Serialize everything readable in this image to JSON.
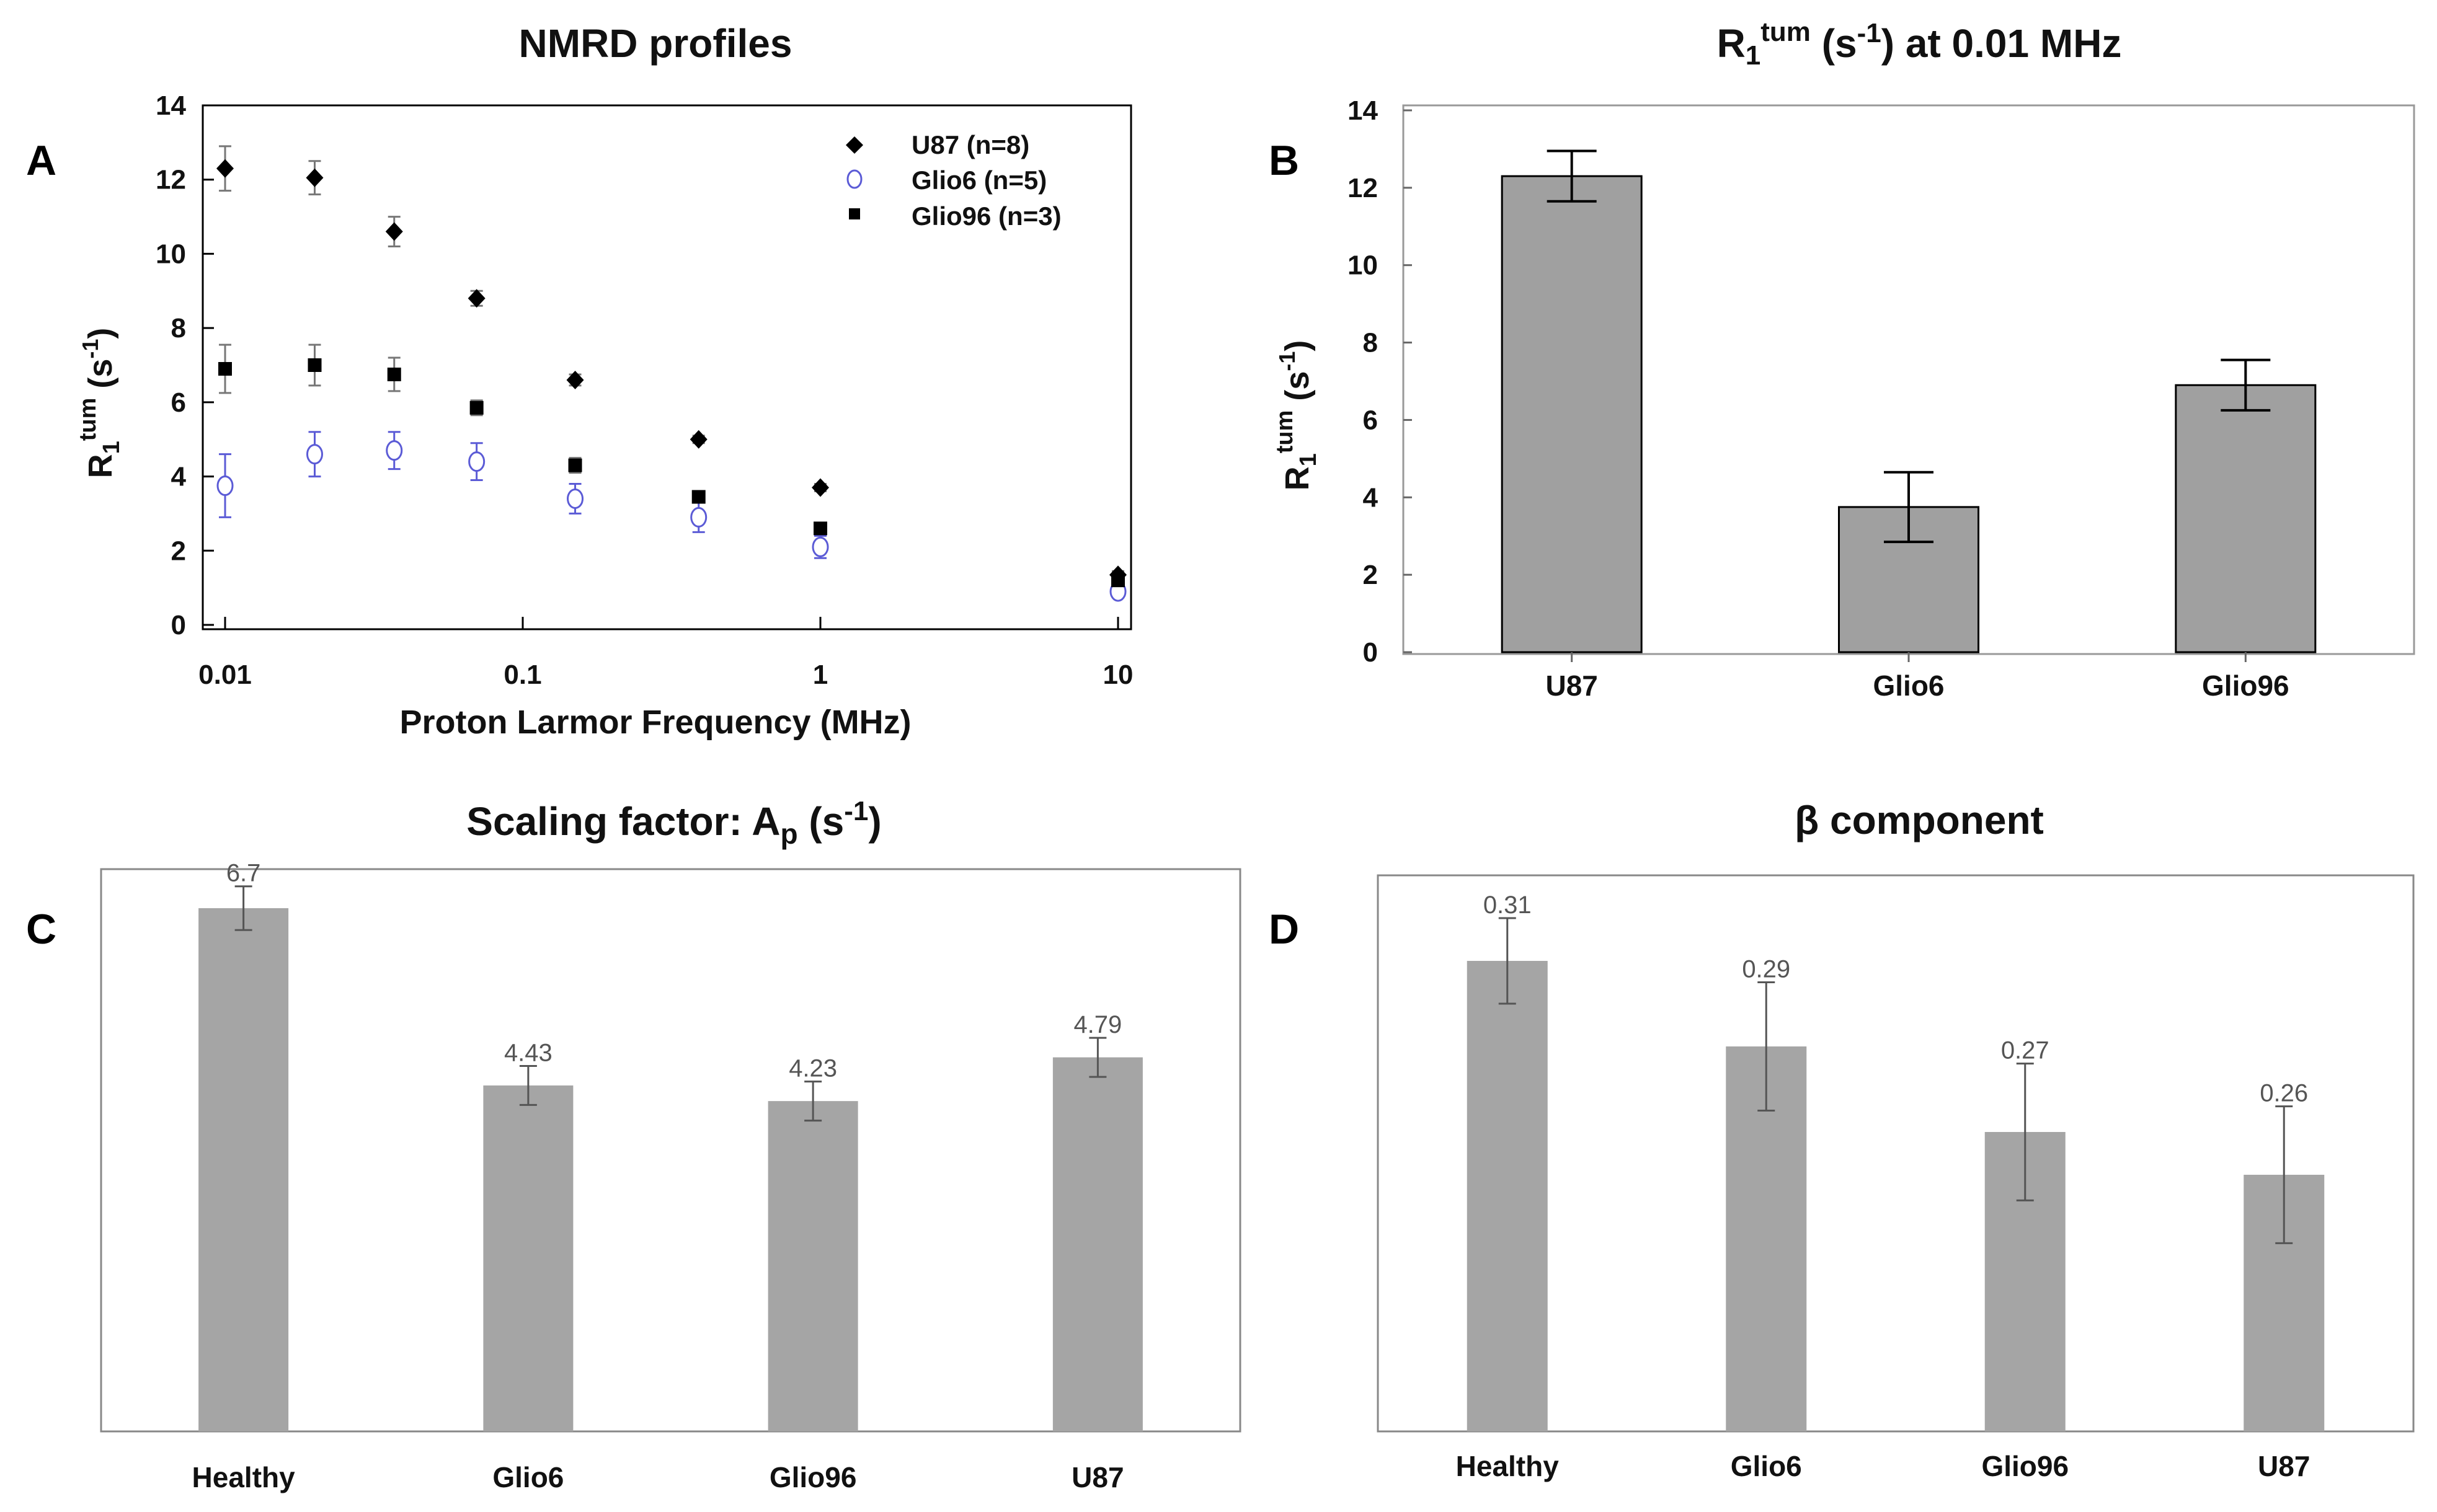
{
  "colors": {
    "bar": "#a5a5a5",
    "bar_dark": "#a0a0a0",
    "glio6_marker": "#5b5bd6",
    "black": "#000000",
    "error_gray": "#777777"
  },
  "chart_data": [
    {
      "panel": "A",
      "type": "scatter",
      "title": "NMRD profiles",
      "xlabel": "Proton Larmor Frequency (MHz)",
      "ylabel": {
        "base": "R",
        "sub": "1",
        "sup": "tum",
        "unit_open": " (s",
        "unit_sup": "-1",
        "unit_close": ")"
      },
      "xscale": "log",
      "xlim": [
        0.01,
        10
      ],
      "ylim": [
        0,
        14
      ],
      "xticks": [
        0.01,
        0.1,
        1,
        10
      ],
      "xtick_labels": [
        "0.01",
        "0.1",
        "1",
        "10"
      ],
      "yticks": [
        0,
        2,
        4,
        6,
        8,
        10,
        12,
        14
      ],
      "ytick_labels": [
        "0",
        "2",
        "4",
        "6",
        "8",
        "10",
        "12",
        "14"
      ],
      "legend_position": "top-right",
      "series": [
        {
          "name": "U87 (n=8)",
          "marker": "diamond",
          "x": [
            0.01,
            0.02,
            0.037,
            0.07,
            0.15,
            0.39,
            1,
            10
          ],
          "y": [
            12.3,
            12.05,
            10.6,
            8.8,
            6.6,
            5.0,
            3.7,
            1.35
          ],
          "err": [
            0.6,
            0.45,
            0.4,
            0.2,
            0.15,
            0.1,
            0.1,
            0.1
          ]
        },
        {
          "name": "Glio6 (n=5)",
          "marker": "open-circle",
          "x": [
            0.01,
            0.02,
            0.037,
            0.07,
            0.15,
            0.39,
            1,
            10
          ],
          "y": [
            3.75,
            4.6,
            4.7,
            4.4,
            3.4,
            2.9,
            2.1,
            0.9
          ],
          "err": [
            0.85,
            0.6,
            0.5,
            0.5,
            0.4,
            0.4,
            0.3,
            0.1
          ]
        },
        {
          "name": "Glio96 (n=3)",
          "marker": "square",
          "x": [
            0.01,
            0.02,
            0.037,
            0.07,
            0.15,
            0.39,
            1,
            10
          ],
          "y": [
            6.9,
            7.0,
            6.75,
            5.85,
            4.3,
            3.45,
            2.6,
            1.2
          ],
          "err": [
            0.65,
            0.55,
            0.45,
            0.2,
            0.2,
            0.15,
            0.1,
            0.1
          ]
        }
      ]
    },
    {
      "panel": "B",
      "type": "bar",
      "title": {
        "base": "R",
        "sub": "1",
        "sup": "tum",
        "unit_open": " (s",
        "unit_sup": "-1",
        "unit_close": ") at 0.01 MHz"
      },
      "ylabel": {
        "base": "R",
        "sub": "1",
        "sup": "tum",
        "unit_open": " (s",
        "unit_sup": "-1",
        "unit_close": ")"
      },
      "ylim": [
        0,
        14
      ],
      "yticks": [
        0,
        2,
        4,
        6,
        8,
        10,
        12,
        14
      ],
      "ytick_labels": [
        "0",
        "2",
        "4",
        "6",
        "8",
        "10",
        "12",
        "14"
      ],
      "categories": [
        "U87",
        "Glio6",
        "Glio96"
      ],
      "values": [
        12.3,
        3.75,
        6.9
      ],
      "errors": [
        0.65,
        0.9,
        0.65
      ]
    },
    {
      "panel": "C",
      "type": "bar",
      "title": {
        "base": "Scaling factor: A",
        "sub": "p",
        "unit_open": " (s",
        "unit_sup": "-1",
        "unit_close": ")"
      },
      "categories": [
        "Healthy",
        "Glio6",
        "Glio96",
        "U87"
      ],
      "values": [
        6.7,
        4.43,
        4.23,
        4.79
      ],
      "labels": [
        "6.7",
        "4.43",
        "4.23",
        "4.79"
      ],
      "errors": [
        0.28,
        0.25,
        0.25,
        0.25
      ],
      "ylim": [
        0,
        7.2
      ]
    },
    {
      "panel": "D",
      "type": "bar",
      "title": "β component",
      "categories": [
        "Healthy",
        "Glio6",
        "Glio96",
        "U87"
      ],
      "values": [
        0.31,
        0.29,
        0.27,
        0.26
      ],
      "labels": [
        "0.31",
        "0.29",
        "0.27",
        "0.26"
      ],
      "errors": [
        0.01,
        0.015,
        0.016,
        0.016
      ],
      "ylim": [
        0.2,
        0.33
      ]
    }
  ]
}
